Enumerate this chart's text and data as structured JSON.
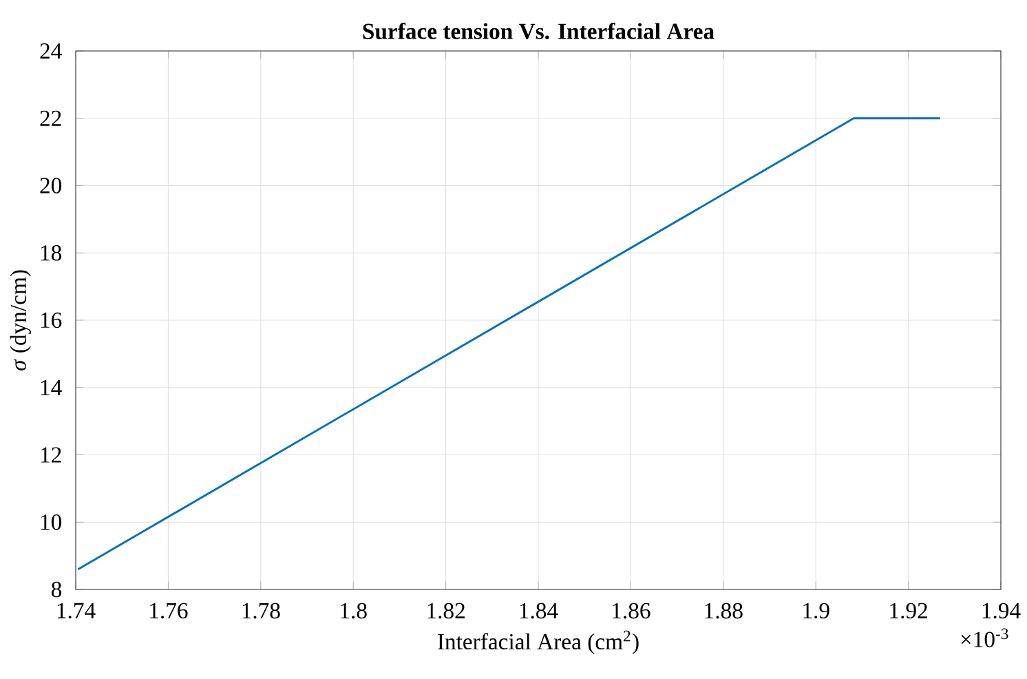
{
  "chart_data": {
    "type": "line",
    "title": "**Surface tension Vs. Interfacial Area**",
    "xlabel": "Interfacial Area (cm$^{2}$)",
    "ylabel": "*σ* (dyn/cm)",
    "annotations": [
      "×10$^{-3}$"
    ],
    "series": [
      {
        "color": "#0072bd",
        "x": [
          1.7405,
          1.9082,
          1.9269
        ],
        "values": [
          8.6,
          22.0,
          22.0
        ]
      }
    ],
    "xlim": [
      1.74,
      1.94
    ],
    "ylim": [
      8,
      24
    ],
    "xticks": [
      1.74,
      1.76,
      1.78,
      1.8,
      1.82,
      1.84,
      1.86,
      1.88,
      1.9,
      1.92,
      1.94
    ],
    "yticks": [
      8,
      10,
      12,
      14,
      16,
      18,
      20,
      22,
      24
    ],
    "grid": true,
    "marker": "none",
    "line_style": "solid"
  }
}
